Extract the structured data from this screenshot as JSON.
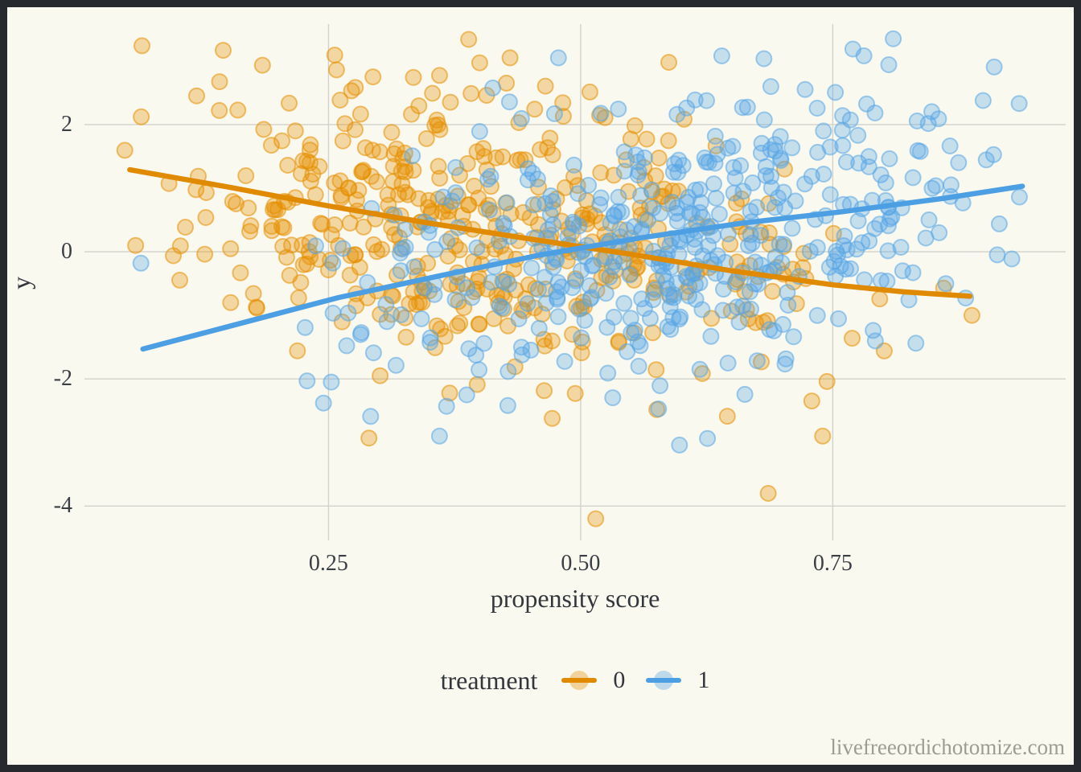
{
  "page": {
    "background_color": "#FAF9EF",
    "frame_color": "#26292E",
    "watermark": "livefreeordichotomize.com"
  },
  "chart_data": {
    "type": "scatter",
    "title": "",
    "xlabel": "propensity score",
    "ylabel": "y",
    "xlim": [
      0.008,
      0.981
    ],
    "ylim": [
      -4.54,
      3.58
    ],
    "x_ticks": [
      0.25,
      0.5,
      0.75
    ],
    "x_tick_labels": [
      "0.25",
      "0.50",
      "0.75"
    ],
    "y_ticks": [
      2,
      0,
      -2,
      -4
    ],
    "y_tick_labels": [
      "2",
      "0",
      "-2",
      "-4"
    ],
    "grid": true,
    "gridline_color": "#D2D2CB",
    "point_radius": 9.5,
    "point_fill_opacity": 0.32,
    "point_stroke_opacity": 0.55,
    "line_width": 6.5,
    "legend": {
      "title": "treatment",
      "position": "bottom",
      "entries": [
        {
          "label": "0",
          "color": "#E08A00"
        },
        {
          "label": "1",
          "color": "#4D9FE3"
        }
      ]
    },
    "series": [
      {
        "name": "0",
        "point_color": "#E69000",
        "line_color": "#E08A00",
        "n_points": 450,
        "seed": 42,
        "x_dist": {
          "mean": 0.4,
          "sd": 0.165,
          "min": 0.045,
          "max": 0.92
        },
        "noise_sd": 1.08,
        "trend": [
          [
            0.053,
            1.29
          ],
          [
            0.15,
            1.02
          ],
          [
            0.25,
            0.72
          ],
          [
            0.35,
            0.45
          ],
          [
            0.45,
            0.2
          ],
          [
            0.55,
            -0.04
          ],
          [
            0.65,
            -0.3
          ],
          [
            0.75,
            -0.52
          ],
          [
            0.82,
            -0.63
          ],
          [
            0.886,
            -0.7
          ]
        ],
        "extra_points": [
          [
            0.065,
            3.24
          ],
          [
            0.389,
            3.34
          ],
          [
            0.43,
            3.05
          ],
          [
            0.515,
            -4.2
          ],
          [
            0.686,
            -3.8
          ],
          [
            0.74,
            -2.9
          ],
          [
            0.888,
            -1.0
          ]
        ]
      },
      {
        "name": "1",
        "point_color": "#56A6E6",
        "line_color": "#4D9FE3",
        "n_points": 450,
        "seed": 7,
        "x_dist": {
          "mean": 0.6,
          "sd": 0.165,
          "min": 0.06,
          "max": 0.95
        },
        "noise_sd": 1.05,
        "trend": [
          [
            0.066,
            -1.53
          ],
          [
            0.15,
            -1.18
          ],
          [
            0.26,
            -0.72
          ],
          [
            0.36,
            -0.38
          ],
          [
            0.46,
            -0.05
          ],
          [
            0.56,
            0.22
          ],
          [
            0.66,
            0.45
          ],
          [
            0.76,
            0.63
          ],
          [
            0.86,
            0.84
          ],
          [
            0.938,
            1.03
          ]
        ],
        "extra_points": [
          [
            0.478,
            3.05
          ],
          [
            0.81,
            3.35
          ],
          [
            0.64,
            3.08
          ],
          [
            0.598,
            -3.04
          ],
          [
            0.245,
            -2.38
          ],
          [
            0.36,
            -2.9
          ],
          [
            0.064,
            -0.18
          ]
        ]
      }
    ]
  }
}
